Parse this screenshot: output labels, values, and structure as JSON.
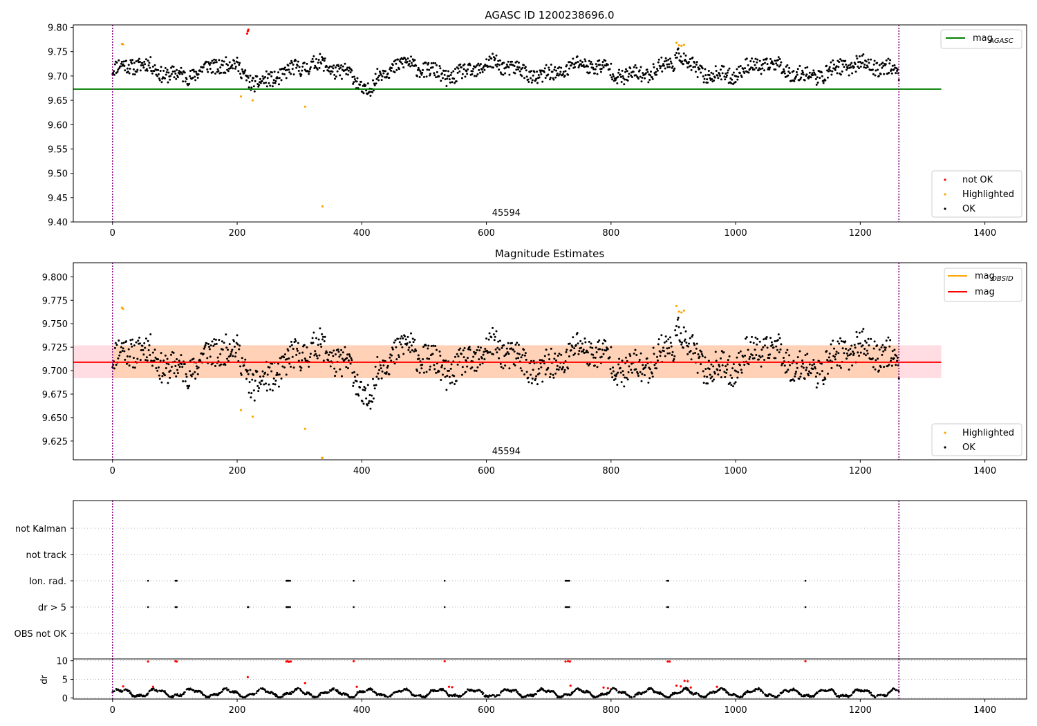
{
  "chart_data": [
    {
      "type": "scatter",
      "title": "AGASC ID 1200238696.0",
      "xlim": [
        -63,
        1467
      ],
      "ylim": [
        9.4,
        9.805
      ],
      "x_ticks": [
        0,
        200,
        400,
        600,
        800,
        1000,
        1200,
        1400
      ],
      "y_ticks": [
        "9.40",
        "9.45",
        "9.50",
        "9.55",
        "9.60",
        "9.65",
        "9.70",
        "9.75",
        "9.80"
      ],
      "vlines": [
        0,
        1262
      ],
      "hline": {
        "name": "mag_AGASC",
        "y": 9.673,
        "x_range": [
          -63,
          1330
        ],
        "color": "#008000"
      },
      "annotation": {
        "text": "45594",
        "x": 632
      },
      "legend_lines": [
        {
          "label": "mag",
          "subscript": "AGASC",
          "color": "#008000"
        }
      ],
      "legend_points": [
        {
          "label": "not OK",
          "color": "#ff0000"
        },
        {
          "label": "Highlighted",
          "color": "#ffa500"
        },
        {
          "label": "OK",
          "color": "#000000"
        }
      ],
      "not_ok_points": [
        [
          216,
          9.787
        ],
        [
          217,
          9.792
        ],
        [
          218,
          9.795
        ]
      ],
      "highlighted_points": [
        [
          15,
          9.766
        ],
        [
          17,
          9.765
        ],
        [
          206,
          9.658
        ],
        [
          225,
          9.65
        ],
        [
          309,
          9.637
        ],
        [
          337,
          9.432
        ],
        [
          905,
          9.768
        ],
        [
          909,
          9.763
        ],
        [
          913,
          9.762
        ],
        [
          917,
          9.764
        ]
      ]
    },
    {
      "type": "scatter",
      "title": "Magnitude Estimates",
      "xlim": [
        -63,
        1467
      ],
      "ylim": [
        9.605,
        9.815
      ],
      "x_ticks": [
        0,
        200,
        400,
        600,
        800,
        1000,
        1200,
        1400
      ],
      "y_ticks": [
        "9.625",
        "9.650",
        "9.675",
        "9.700",
        "9.725",
        "9.750",
        "9.775",
        "9.800"
      ],
      "vlines": [
        0,
        1262
      ],
      "mag_line": {
        "y": 9.709,
        "x_range": [
          -63,
          1330
        ],
        "color": "#ff0000"
      },
      "band": {
        "y_low": 9.692,
        "y_high": 9.727,
        "x_range": [
          -63,
          1330
        ]
      },
      "annotation": {
        "text": "45594",
        "x": 632
      },
      "legend_lines": [
        {
          "label": "mag",
          "subscript": "OBSID",
          "color": "#ffa500"
        },
        {
          "label": "mag",
          "subscript": "",
          "color": "#ff0000"
        }
      ],
      "legend_points": [
        {
          "label": "Highlighted",
          "color": "#ffa500"
        },
        {
          "label": "OK",
          "color": "#000000"
        }
      ],
      "highlighted_points": [
        [
          15,
          9.767
        ],
        [
          17,
          9.766
        ],
        [
          206,
          9.658
        ],
        [
          225,
          9.651
        ],
        [
          309,
          9.638
        ],
        [
          336,
          9.607
        ],
        [
          337,
          9.607
        ],
        [
          905,
          9.769
        ],
        [
          909,
          9.763
        ],
        [
          913,
          9.762
        ],
        [
          917,
          9.764
        ]
      ]
    },
    {
      "type": "scatter",
      "title": "",
      "xlim": [
        -63,
        1467
      ],
      "x_ticks": [
        0,
        200,
        400,
        600,
        800,
        1000,
        1200,
        1400
      ],
      "vlines": [
        0,
        1262
      ],
      "categories": [
        "not Kalman",
        "not track",
        "Ion. rad.",
        "dr > 5",
        "OBS not OK"
      ],
      "flag_points": {
        "Ion. rad.": [
          57,
          101,
          102,
          103,
          279,
          280,
          281,
          282,
          283,
          285,
          387,
          533,
          727,
          729,
          731,
          733,
          890,
          892,
          1112
        ],
        "dr > 5": [
          57,
          101,
          102,
          103,
          217,
          218,
          279,
          280,
          281,
          282,
          283,
          285,
          387,
          533,
          727,
          729,
          731,
          733,
          890,
          892,
          1112
        ]
      }
    },
    {
      "type": "scatter",
      "title": "",
      "ylabel": "dr",
      "xlim": [
        -63,
        1467
      ],
      "ylim": [
        -0.3,
        10.5
      ],
      "x_ticks": [
        0,
        200,
        400,
        600,
        800,
        1000,
        1200,
        1400
      ],
      "y_ticks": [
        0,
        5,
        10
      ],
      "vlines": [
        0,
        1262
      ],
      "red_points": [
        [
          17,
          3.1
        ],
        [
          57,
          9.8
        ],
        [
          65,
          3.0
        ],
        [
          101,
          9.9
        ],
        [
          103,
          9.8
        ],
        [
          217,
          5.6
        ],
        [
          279,
          9.8
        ],
        [
          281,
          9.9
        ],
        [
          283,
          9.7
        ],
        [
          286,
          9.8
        ],
        [
          309,
          4.0
        ],
        [
          387,
          9.9
        ],
        [
          392,
          3.0
        ],
        [
          533,
          9.9
        ],
        [
          540,
          3.0
        ],
        [
          545,
          2.9
        ],
        [
          727,
          9.8
        ],
        [
          731,
          9.9
        ],
        [
          734,
          9.8
        ],
        [
          735,
          3.3
        ],
        [
          788,
          2.8
        ],
        [
          795,
          2.6
        ],
        [
          891,
          9.8
        ],
        [
          894,
          9.8
        ],
        [
          905,
          3.3
        ],
        [
          912,
          3.1
        ],
        [
          918,
          4.6
        ],
        [
          923,
          4.5
        ],
        [
          928,
          2.8
        ],
        [
          970,
          3.0
        ],
        [
          1112,
          9.9
        ]
      ]
    }
  ]
}
